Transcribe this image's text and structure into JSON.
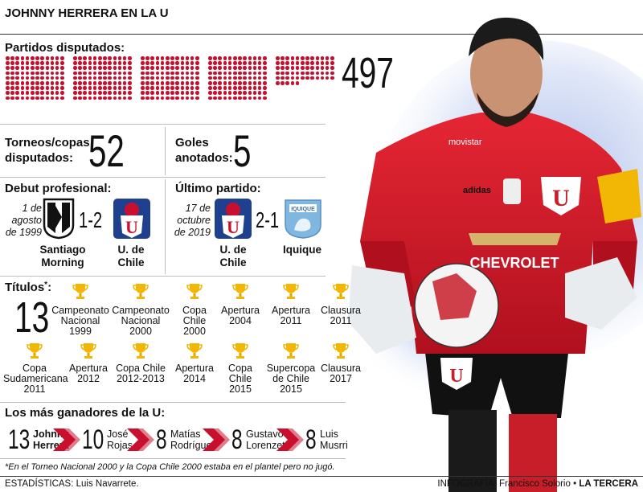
{
  "header": {
    "title": "JOHNNY HERRERA EN LA U"
  },
  "matches": {
    "label": "Partidos disputados:",
    "value": "497",
    "count": 497
  },
  "tournaments": {
    "label_line1": "Torneos/copas",
    "label_line2": "disputados:",
    "value": "52"
  },
  "goals": {
    "label_line1": "Goles",
    "label_line2": "anotados:",
    "value": "5"
  },
  "debut": {
    "title": "Debut profesional:",
    "date_line1": "1 de",
    "date_line2": "agosto de 1999",
    "score": "1-2",
    "team_home_line1": "Santiago",
    "team_home_line2": "Morning",
    "team_away_line1": "U. de",
    "team_away_line2": "Chile"
  },
  "last_match": {
    "title": "Último partido:",
    "date_line1": "17 de",
    "date_line2": "octubre",
    "date_line3": "de 2019",
    "score": "2-1",
    "team_home_line1": "U. de",
    "team_home_line2": "Chile",
    "team_away": "Iquique",
    "badge_text": "IQUIQUE"
  },
  "titles": {
    "label": "Títulos",
    "mark": "*",
    "suffix": ":",
    "value": "13",
    "items": [
      {
        "lines": [
          "Campeonato",
          "Nacional",
          "1999"
        ]
      },
      {
        "lines": [
          "Campeonato",
          "Nacional",
          "2000"
        ]
      },
      {
        "lines": [
          "Copa",
          "Chile",
          "2000"
        ]
      },
      {
        "lines": [
          "Apertura",
          "2004"
        ]
      },
      {
        "lines": [
          "Apertura",
          "2011"
        ]
      },
      {
        "lines": [
          "Clausura",
          "2011"
        ]
      },
      {
        "lines": [
          "Copa",
          "Sudamericana",
          "2011"
        ]
      },
      {
        "lines": [
          "Apertura",
          "2012"
        ]
      },
      {
        "lines": [
          "Copa Chile",
          "2012-2013"
        ]
      },
      {
        "lines": [
          "Apertura",
          "2014"
        ]
      },
      {
        "lines": [
          "Copa",
          "Chile",
          "2015"
        ]
      },
      {
        "lines": [
          "Supercopa",
          "de Chile",
          "2015"
        ]
      },
      {
        "lines": [
          "Clausura",
          "2017"
        ]
      }
    ]
  },
  "winners": {
    "title": "Los más ganadores de la U:",
    "players": [
      {
        "count": "13",
        "first": "Johnny",
        "last": "Herrera"
      },
      {
        "count": "10",
        "first": "José",
        "last": "Rojas"
      },
      {
        "count": "8",
        "first": "Matías",
        "last": "Rodríguez"
      },
      {
        "count": "8",
        "first": "Gustavo",
        "last": "Lorenzetti"
      },
      {
        "count": "8",
        "first": "Luis",
        "last": "Musrri"
      }
    ]
  },
  "footnote": "*En el Torneo Nacional 2000 y la Copa Chile 2000 estaba en el plantel pero no jugó.",
  "credits": {
    "stats": "ESTADÍSTICAS: Luis Navarrete.",
    "infographic": "INFOGRAFÍA: Francisco Solorio •",
    "brand": "LA TERCERA"
  },
  "jersey": {
    "sponsor": "CHEVROLET",
    "sponsor_top": "movistar",
    "kit": "adidas",
    "crest": "U"
  },
  "colors": {
    "accent": "#c8102e",
    "jersey_red": "#d81e2c",
    "u_blue": "#1f3f8f",
    "gold": "#f2b705"
  },
  "icons": [
    "trophy-icon",
    "chevron-right-icon",
    "crest-santiago-morning",
    "crest-u-de-chile",
    "crest-iquique",
    "goalkeeper-photo"
  ]
}
